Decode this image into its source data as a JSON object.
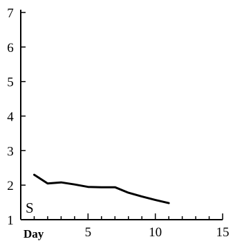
{
  "chart_data": {
    "type": "line",
    "title": "",
    "xlabel": "Day",
    "ylabel": "",
    "panel_label": "S",
    "xlim": [
      0,
      15
    ],
    "ylim": [
      1,
      7
    ],
    "x_ticks": [
      5,
      10,
      15
    ],
    "x_minor_ticks": [
      1,
      2,
      3,
      4,
      6,
      7,
      8,
      9,
      11,
      12,
      13,
      14
    ],
    "y_ticks": [
      1,
      2,
      3,
      4,
      5,
      6,
      7
    ],
    "grid": false,
    "series": [
      {
        "x": [
          1,
          2,
          3,
          4,
          5,
          6,
          7,
          8,
          9,
          10,
          11
        ],
        "values": [
          2.3,
          2.05,
          2.08,
          2.02,
          1.95,
          1.94,
          1.94,
          1.78,
          1.67,
          1.57,
          1.48
        ]
      }
    ]
  },
  "colors": {
    "line": "#000000",
    "axis": "#000000",
    "background": "#ffffff"
  }
}
